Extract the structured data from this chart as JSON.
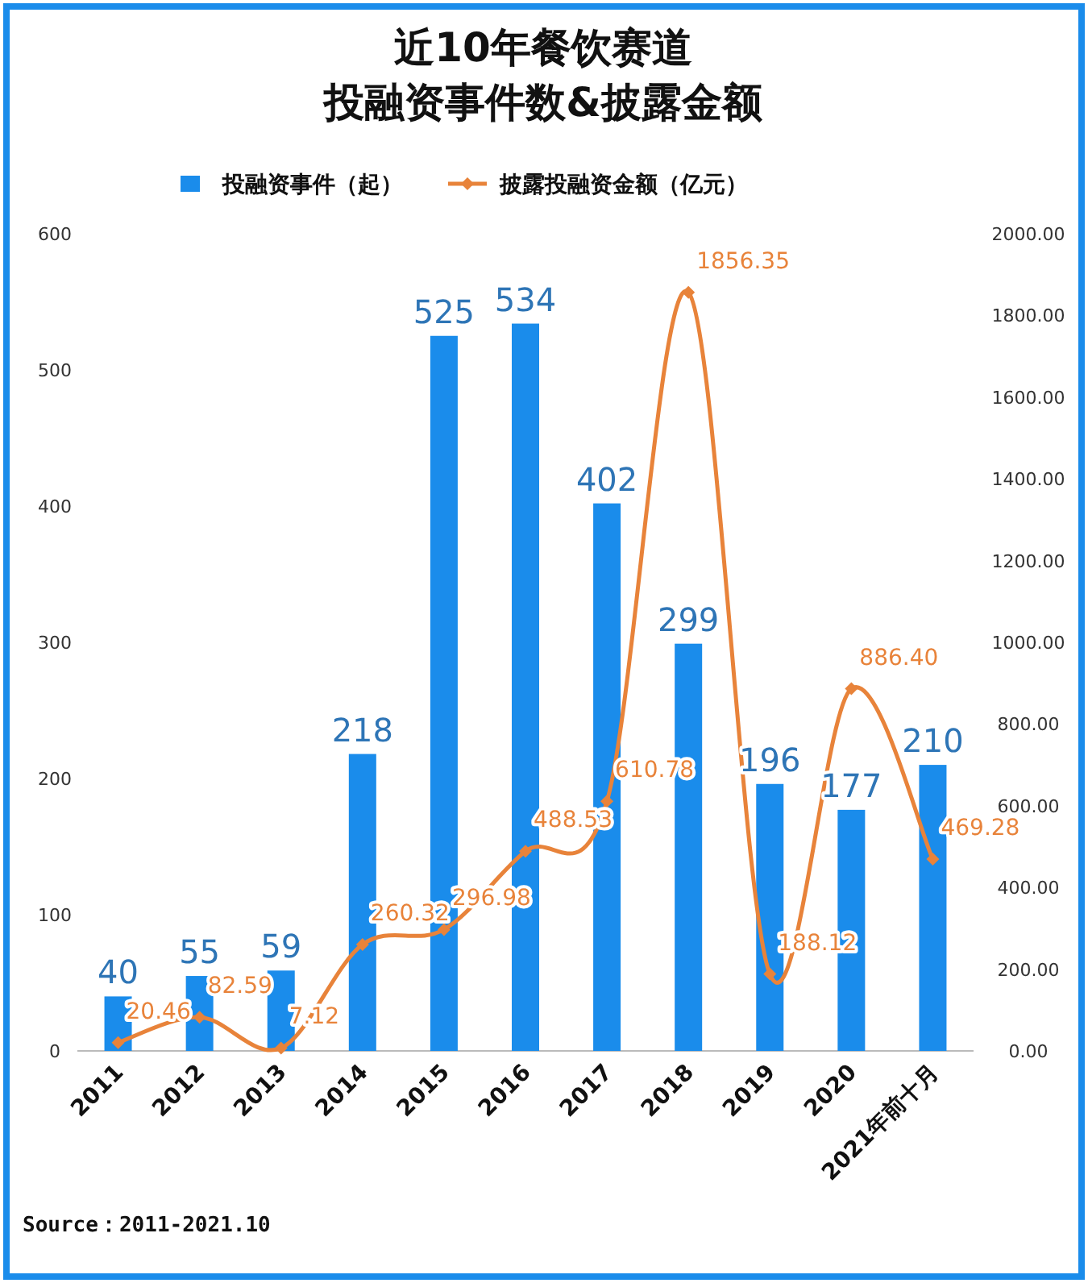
{
  "chart_data": {
    "type": "bar",
    "title": "近10年餐饮赛道",
    "subtitle": "投融资事件数&披露金额",
    "categories": [
      "2011",
      "2012",
      "2013",
      "2014",
      "2015",
      "2016",
      "2017",
      "2018",
      "2019",
      "2020",
      "2021年前十月"
    ],
    "series": [
      {
        "name": "投融资事件（起）",
        "color": "#1a8ceb",
        "values": [
          40,
          55,
          59,
          218,
          525,
          534,
          402,
          299,
          196,
          177,
          210
        ]
      },
      {
        "name": "披露投融资金额（亿元）",
        "type": "line",
        "axis": "y2",
        "color": "#e8833a",
        "marker": "diamond",
        "values": [
          20.46,
          82.59,
          7.12,
          260.32,
          296.98,
          488.53,
          610.78,
          1856.35,
          188.12,
          886.4,
          469.28
        ],
        "value_labels": [
          "20.46",
          "82.59",
          "7.12",
          "260.32",
          "296.98",
          "488.53",
          "610.78",
          "1856.35",
          "188.12",
          "886.40",
          "469.28"
        ]
      }
    ],
    "ylim": [
      0,
      600
    ],
    "yticks": [
      0,
      100,
      200,
      300,
      400,
      500,
      600
    ],
    "y2lim": [
      0,
      2000
    ],
    "y2ticks": [
      {
        "value": 0,
        "label": "0.00"
      },
      {
        "value": 200,
        "label": "200.00"
      },
      {
        "value": 400,
        "label": "400.00"
      },
      {
        "value": 600,
        "label": "600.00"
      },
      {
        "value": 800,
        "label": "800.00"
      },
      {
        "value": 1000,
        "label": "1000.00"
      },
      {
        "value": 1200,
        "label": "1200.00"
      },
      {
        "value": 1400,
        "label": "1400.00"
      },
      {
        "value": 1600,
        "label": "1600.00"
      },
      {
        "value": 1800,
        "label": "1800.00"
      },
      {
        "value": 2000,
        "label": "2000.00"
      }
    ],
    "data_labels": true,
    "legend": "top",
    "annotations": [
      "Source：2011-2021.10"
    ]
  }
}
